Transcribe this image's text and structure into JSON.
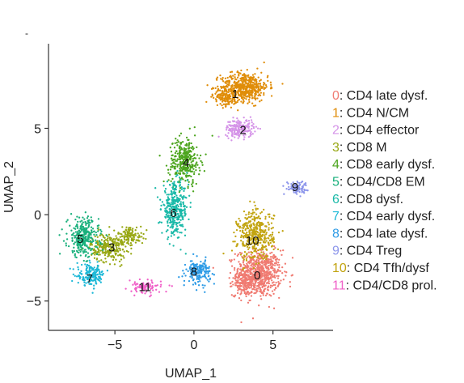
{
  "figure": {
    "panel_mark": "-"
  },
  "chart_data": {
    "type": "scatter",
    "xlabel": "UMAP_1",
    "ylabel": "UMAP_2",
    "xlim": [
      -9.2,
      8.8
    ],
    "ylim": [
      -6.7,
      9.9
    ],
    "xticks": [
      -5,
      0,
      5
    ],
    "yticks": [
      -5,
      0,
      5
    ],
    "xtick_labels": [
      "−5",
      "0",
      "5"
    ],
    "ytick_labels": [
      "−5",
      "0",
      "5"
    ],
    "grid": false,
    "legend_position": "right",
    "clusters": [
      {
        "id": 0,
        "label": "0",
        "legend_num": "0",
        "legend_text": ": CD4 late dysf.",
        "color": "#F07B72",
        "center": [
          4.0,
          -3.5
        ],
        "blobs": [
          {
            "c": [
              4.1,
              -3.4
            ],
            "s": [
              0.95,
              0.9
            ],
            "n": 720
          },
          {
            "c": [
              3.1,
              -4.0
            ],
            "s": [
              0.45,
              0.45
            ],
            "n": 120
          }
        ]
      },
      {
        "id": 1,
        "label": "1",
        "legend_num": "1",
        "legend_text": ": CD4 N/CM",
        "color": "#E08D09",
        "center": [
          2.6,
          7.0
        ],
        "blobs": [
          {
            "c": [
              3.2,
              7.4
            ],
            "s": [
              1.0,
              0.55
            ],
            "n": 520
          },
          {
            "c": [
              2.0,
              6.8
            ],
            "s": [
              0.5,
              0.35
            ],
            "n": 140
          }
        ]
      },
      {
        "id": 2,
        "label": "2",
        "legend_num": "2",
        "legend_text": ": CD4 effector",
        "color": "#D594E8",
        "center": [
          3.1,
          4.9
        ],
        "blobs": [
          {
            "c": [
              2.9,
              5.0
            ],
            "s": [
              0.6,
              0.35
            ],
            "n": 200
          }
        ]
      },
      {
        "id": 3,
        "label": "3",
        "legend_num": "3",
        "legend_text": ": CD8 M",
        "color": "#97A712",
        "center": [
          -5.2,
          -1.9
        ],
        "blobs": [
          {
            "c": [
              -5.4,
              -1.9
            ],
            "s": [
              0.75,
              0.55
            ],
            "n": 260
          },
          {
            "c": [
              -4.0,
              -1.2
            ],
            "s": [
              0.55,
              0.35
            ],
            "n": 110
          }
        ]
      },
      {
        "id": 4,
        "label": "4",
        "legend_num": "4",
        "legend_text": ": CD8 early dysf.",
        "color": "#4CA51E",
        "center": [
          -0.5,
          3.0
        ],
        "blobs": [
          {
            "c": [
              -0.6,
              3.1
            ],
            "s": [
              0.65,
              0.9
            ],
            "n": 330
          }
        ]
      },
      {
        "id": 5,
        "label": "5",
        "legend_num": "5",
        "legend_text": ": CD4/CD8 EM",
        "color": "#19B07C",
        "center": [
          -7.2,
          -1.4
        ],
        "blobs": [
          {
            "c": [
              -7.0,
              -1.3
            ],
            "s": [
              0.65,
              0.75
            ],
            "n": 300
          }
        ]
      },
      {
        "id": 6,
        "label": "6",
        "legend_num": "6",
        "legend_text": ": CD8 dysf.",
        "color": "#19B9A8",
        "center": [
          -1.3,
          0.1
        ],
        "blobs": [
          {
            "c": [
              -1.2,
              0.3
            ],
            "s": [
              0.55,
              1.0
            ],
            "n": 340
          }
        ]
      },
      {
        "id": 7,
        "label": "7",
        "legend_num": "7",
        "legend_text": ": CD4 early dysf.",
        "color": "#1CB8D7",
        "center": [
          -6.6,
          -3.7
        ],
        "blobs": [
          {
            "c": [
              -6.5,
              -3.5
            ],
            "s": [
              0.6,
              0.4
            ],
            "n": 170
          }
        ]
      },
      {
        "id": 8,
        "label": "8",
        "legend_num": "8",
        "legend_text": ": CD4 late dysf.",
        "color": "#2D9BE6",
        "center": [
          0.0,
          -3.3
        ],
        "blobs": [
          {
            "c": [
              0.3,
              -3.3
            ],
            "s": [
              0.5,
              0.45
            ],
            "n": 170
          }
        ]
      },
      {
        "id": 9,
        "label": "9",
        "legend_num": "9",
        "legend_text": ": CD4 Treg",
        "color": "#8D96EB",
        "center": [
          6.4,
          1.6
        ],
        "blobs": [
          {
            "c": [
              6.5,
              1.6
            ],
            "s": [
              0.45,
              0.22
            ],
            "n": 90
          }
        ]
      },
      {
        "id": 10,
        "label": "10",
        "legend_num": "10",
        "legend_text": ": CD4 Tfh/dysf",
        "color": "#C2A411",
        "center": [
          3.7,
          -1.5
        ],
        "blobs": [
          {
            "c": [
              3.9,
              -1.2
            ],
            "s": [
              0.75,
              0.95
            ],
            "n": 420
          }
        ]
      },
      {
        "id": 11,
        "label": "11",
        "legend_num": "11",
        "legend_text": ": CD4/CD8 prol.",
        "color": "#F060C8",
        "center": [
          -3.1,
          -4.2
        ],
        "blobs": [
          {
            "c": [
              -3.1,
              -4.2
            ],
            "s": [
              0.7,
              0.25
            ],
            "n": 90
          }
        ]
      }
    ]
  }
}
